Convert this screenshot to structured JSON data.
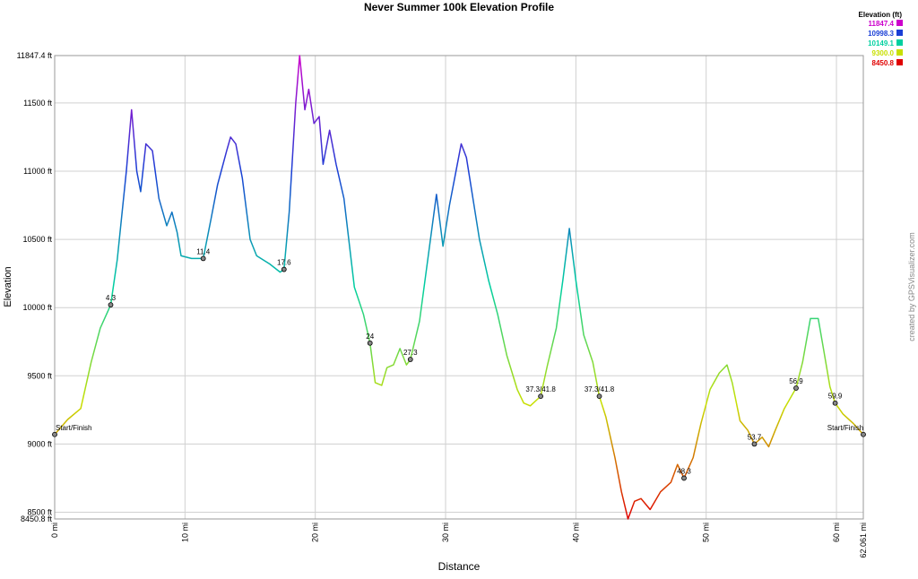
{
  "chart_data": {
    "type": "line",
    "title": "Never Summer 100k Elevation Profile",
    "x_label": "Distance",
    "y_label": "Elevation",
    "credit": "created by GPSVisualizer.com",
    "grid": true,
    "xlim": [
      0,
      62.061
    ],
    "ylim": [
      8450.8,
      11847.4
    ],
    "xticks": [
      {
        "value": 0,
        "label": "0 mi"
      },
      {
        "value": 10,
        "label": "10 mi"
      },
      {
        "value": 20,
        "label": "20 mi"
      },
      {
        "value": 30,
        "label": "30 mi"
      },
      {
        "value": 40,
        "label": "40 mi"
      },
      {
        "value": 50,
        "label": "50 mi"
      },
      {
        "value": 60,
        "label": "60 mi"
      },
      {
        "value": 62.061,
        "label": "62.061 mi"
      }
    ],
    "yticks": [
      {
        "value": 8450.8,
        "label": "8450.8 ft"
      },
      {
        "value": 8500,
        "label": "8500 ft"
      },
      {
        "value": 9000,
        "label": "9000 ft"
      },
      {
        "value": 9500,
        "label": "9500 ft"
      },
      {
        "value": 10000,
        "label": "10000 ft"
      },
      {
        "value": 10500,
        "label": "10500 ft"
      },
      {
        "value": 11000,
        "label": "11000 ft"
      },
      {
        "value": 11500,
        "label": "11500 ft"
      },
      {
        "value": 11847.4,
        "label": "11847.4 ft"
      }
    ],
    "color_scale": {
      "title": "Elevation (ft)",
      "stops": [
        {
          "value": 11847.4,
          "color": "#cc00cc"
        },
        {
          "value": 10998.3,
          "color": "#1a3fd6"
        },
        {
          "value": 10149.1,
          "color": "#00d0a0"
        },
        {
          "value": 9300,
          "label": "9300.0",
          "color": "#c8e000"
        },
        {
          "value": 8450.8,
          "color": "#e00000"
        }
      ]
    },
    "x": [
      0,
      1,
      2,
      2.8,
      3.5,
      4.3,
      4.8,
      5.5,
      5.9,
      6.3,
      6.6,
      7.0,
      7.5,
      8.0,
      8.3,
      8.6,
      9.0,
      9.4,
      9.7,
      10.5,
      11.4,
      12.0,
      12.5,
      13.2,
      13.5,
      13.9,
      14.4,
      15.0,
      15.5,
      16.5,
      17.3,
      17.6,
      18.0,
      18.5,
      18.8,
      19.2,
      19.5,
      19.9,
      20.3,
      20.6,
      21.1,
      21.6,
      22.2,
      23.0,
      23.7,
      24.2,
      24.6,
      25.1,
      25.5,
      26.0,
      26.5,
      27.0,
      27.3,
      28.0,
      28.7,
      29.3,
      29.8,
      30.3,
      30.8,
      31.2,
      31.6,
      32.1,
      32.6,
      33.3,
      34.0,
      34.7,
      35.5,
      36.0,
      36.5,
      37.3,
      37.8,
      38.5,
      39.0,
      39.5,
      40.0,
      40.6,
      41.3,
      41.8,
      42.3,
      43.0,
      43.5,
      44.0,
      44.5,
      45.0,
      45.7,
      46.5,
      47.3,
      47.8,
      48.3,
      49.0,
      49.6,
      50.3,
      51.0,
      51.6,
      52.0,
      52.6,
      53.2,
      53.7,
      54.3,
      54.8,
      55.3,
      56.0,
      56.9,
      57.4,
      58.0,
      58.6,
      59.0,
      59.5,
      59.9,
      60.5,
      61.3,
      62.061
    ],
    "values": [
      9070,
      9180,
      9260,
      9600,
      9850,
      10020,
      10350,
      11000,
      11450,
      11000,
      10850,
      11200,
      11150,
      10800,
      10700,
      10600,
      10700,
      10550,
      10380,
      10360,
      10360,
      10650,
      10900,
      11150,
      11250,
      11200,
      10950,
      10500,
      10380,
      10320,
      10260,
      10280,
      10700,
      11500,
      11847.4,
      11450,
      11600,
      11350,
      11400,
      11050,
      11300,
      11050,
      10800,
      10150,
      9950,
      9740,
      9450,
      9430,
      9560,
      9580,
      9700,
      9580,
      9620,
      9900,
      10400,
      10830,
      10450,
      10750,
      11000,
      11200,
      11100,
      10800,
      10500,
      10200,
      9950,
      9650,
      9400,
      9300,
      9280,
      9350,
      9570,
      9850,
      10200,
      10580,
      10200,
      9800,
      9600,
      9350,
      9200,
      8900,
      8650,
      8450.8,
      8580,
      8600,
      8520,
      8650,
      8720,
      8850,
      8750,
      8900,
      9150,
      9400,
      9520,
      9580,
      9450,
      9170,
      9100,
      9000,
      9050,
      8980,
      9100,
      9260,
      9410,
      9600,
      9920,
      9920,
      9700,
      9420,
      9300,
      9220,
      9150,
      9070
    ],
    "waypoints": {
      "labels": [
        "Start/Finish",
        "4.3",
        "11.4",
        "17.6",
        "24",
        "27.3",
        "37.3/41.8",
        "37.3/41.8",
        "48.3",
        "53.7",
        "56.9",
        "59.9",
        "Start/Finish"
      ],
      "x": [
        0,
        4.3,
        11.4,
        17.6,
        24.2,
        27.3,
        37.3,
        41.8,
        48.3,
        53.7,
        56.9,
        59.9,
        62.061
      ],
      "values": [
        9070,
        10020,
        10360,
        10280,
        9740,
        9620,
        9350,
        9350,
        8750,
        9000,
        9410,
        9300,
        9070
      ]
    }
  }
}
